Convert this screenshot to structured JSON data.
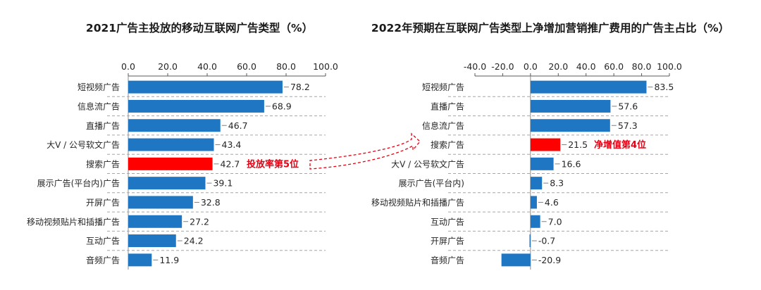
{
  "chart_data": [
    {
      "type": "bar",
      "orientation": "horizontal",
      "title": "2021广告主投放的移动互联网广告类型（%）",
      "categories": [
        "短视频广告",
        "信息流广告",
        "直播广告",
        "大V / 公号软文广告",
        "搜索广告",
        "展示广告(平台内)广告",
        "开屏广告",
        "移动视频贴片和插播广告",
        "互动广告",
        "音频广告"
      ],
      "values": [
        78.2,
        68.9,
        46.7,
        43.4,
        42.7,
        39.1,
        32.8,
        27.2,
        24.2,
        11.9
      ],
      "value_labels": [
        "78.2",
        "68.9",
        "46.7",
        "43.4",
        "42.7",
        "39.1",
        "32.8",
        "27.2",
        "24.2",
        "11.9"
      ],
      "xlim": [
        0,
        100
      ],
      "ticks": [
        0,
        20,
        40,
        60,
        80,
        100
      ],
      "tick_labels": [
        "0.0",
        "20.0",
        "40.0",
        "60.0",
        "80.0",
        "100.0"
      ],
      "axis_position": "top",
      "highlight_index": 4,
      "annotation": "投放率第5位",
      "colors": {
        "bar": "#1f77c4",
        "highlight": "#ff0000"
      }
    },
    {
      "type": "bar",
      "orientation": "horizontal",
      "title": "2022年预期在互联网广告类型上净增加营销推广费用的广告主占比（%）",
      "categories": [
        "短视频广告",
        "直播广告",
        "信息流广告",
        "搜索广告",
        "大V / 公号软文广告",
        "展示广告(平台内)",
        "移动视频贴片和插播广告",
        "互动广告",
        "开屏广告",
        "音频广告"
      ],
      "values": [
        83.5,
        57.6,
        57.3,
        21.5,
        16.6,
        8.3,
        4.6,
        7.0,
        -0.7,
        -20.9
      ],
      "value_labels": [
        "83.5",
        "57.6",
        "57.3",
        "21.5",
        "16.6",
        "8.3",
        "4.6",
        "7.0",
        "-0.7",
        "-20.9"
      ],
      "xlim": [
        -40,
        100
      ],
      "ticks": [
        -40,
        -20,
        0,
        20,
        40,
        60,
        80,
        100
      ],
      "tick_labels": [
        "-40.0",
        "-20.0",
        "0.0",
        "20.0",
        "40.0",
        "60.0",
        "80.0",
        "100.0"
      ],
      "axis_position": "top",
      "highlight_index": 3,
      "annotation": "净增值第4位",
      "colors": {
        "bar": "#1f77c4",
        "highlight": "#ff0000"
      }
    }
  ]
}
